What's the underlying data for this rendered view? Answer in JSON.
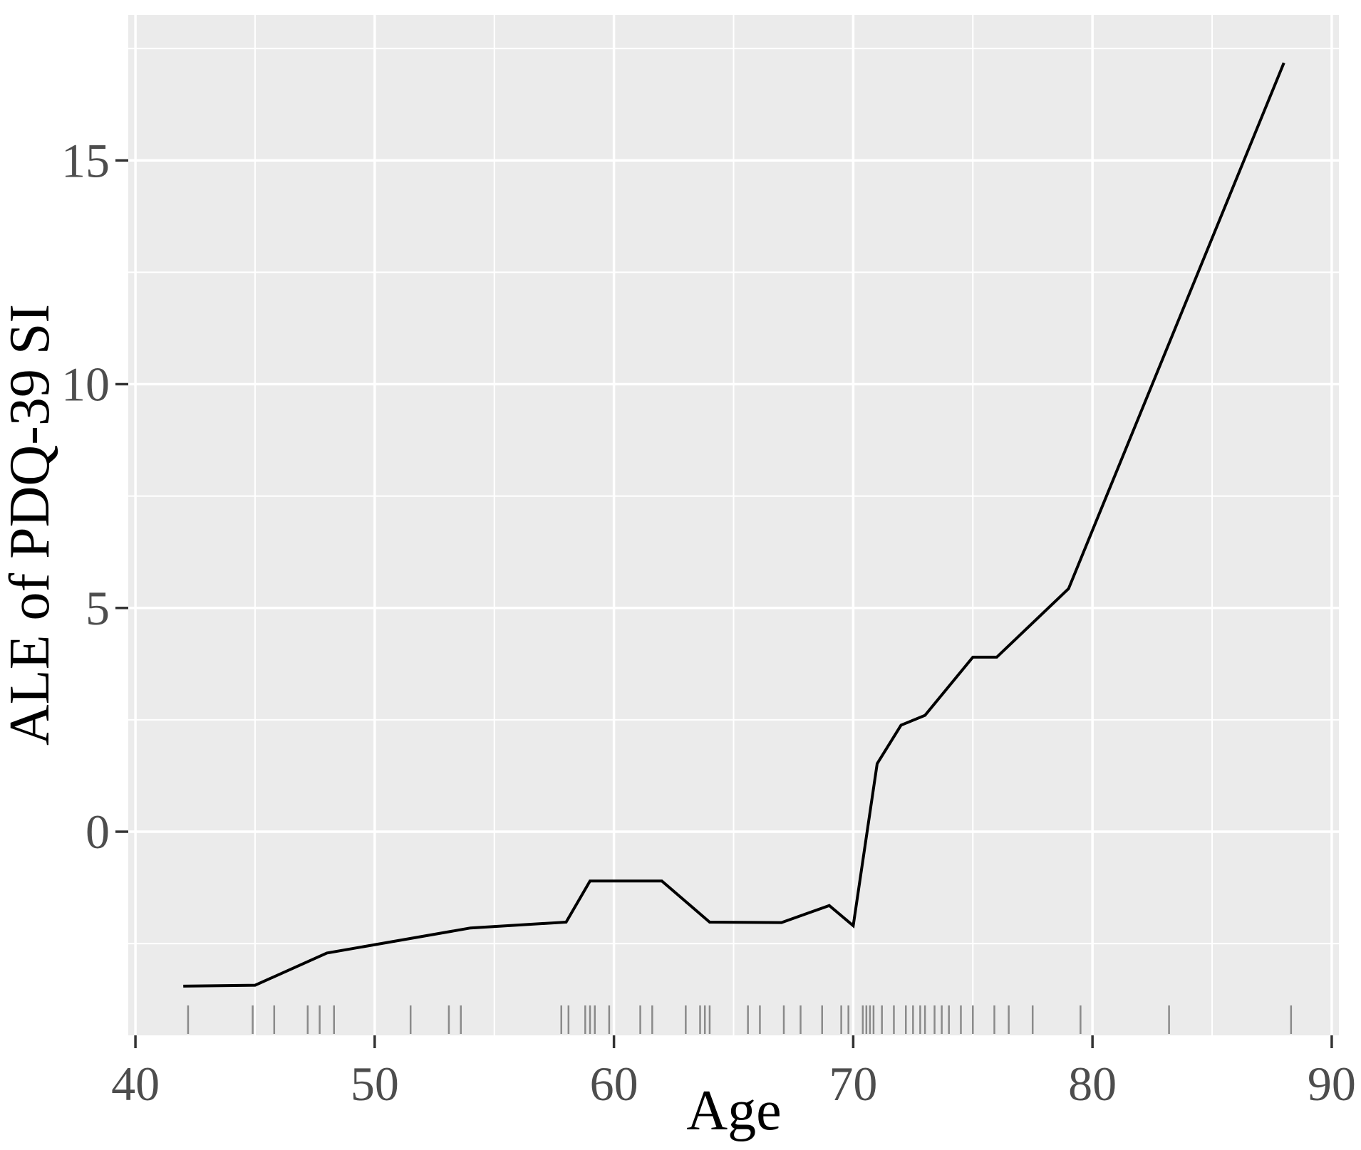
{
  "chart_data": {
    "type": "line",
    "title": "",
    "xlabel": "Age",
    "ylabel": "ALE of PDQ-39 SI",
    "xlim": [
      39.7,
      90.3
    ],
    "ylim": [
      -4.55,
      18.25
    ],
    "x_major_ticks": [
      40,
      50,
      60,
      70,
      80,
      90
    ],
    "x_tick_labels": [
      "40",
      "50",
      "60",
      "70",
      "80",
      "90"
    ],
    "x_minor_ticks": [
      45,
      55,
      65,
      75,
      85
    ],
    "y_major_ticks": [
      0,
      5,
      10,
      15
    ],
    "y_tick_labels": [
      "0",
      "5",
      "10",
      "15"
    ],
    "y_minor_ticks": [
      -2.5,
      2.5,
      7.5,
      12.5,
      17.5
    ],
    "grid": true,
    "legend_position": "none",
    "series": [
      {
        "name": "ALE of PDQ-39 SI vs Age",
        "points": [
          [
            42,
            -3.45
          ],
          [
            45,
            -3.43
          ],
          [
            48,
            -2.71
          ],
          [
            54,
            -2.15
          ],
          [
            58,
            -2.02
          ],
          [
            59,
            -1.1
          ],
          [
            62,
            -1.1
          ],
          [
            64,
            -2.02
          ],
          [
            67,
            -2.03
          ],
          [
            69,
            -1.65
          ],
          [
            70,
            -2.1
          ],
          [
            71,
            1.52
          ],
          [
            72,
            2.38
          ],
          [
            73,
            2.6
          ],
          [
            75,
            3.9
          ],
          [
            76,
            3.9
          ],
          [
            79,
            5.43
          ],
          [
            88,
            17.18
          ]
        ]
      }
    ],
    "rug_x": [
      42.2,
      44.9,
      45.8,
      47.2,
      47.7,
      48.3,
      51.5,
      53.1,
      53.6,
      57.8,
      58.1,
      58.8,
      59.0,
      59.2,
      59.8,
      61.1,
      61.6,
      63.0,
      63.6,
      63.8,
      64.0,
      65.6,
      66.1,
      67.1,
      67.8,
      68.7,
      69.5,
      69.8,
      70.4,
      70.55,
      70.7,
      70.85,
      71.2,
      71.7,
      72.2,
      72.5,
      72.8,
      73.0,
      73.4,
      73.7,
      74.0,
      74.5,
      75.0,
      75.9,
      76.5,
      77.5,
      79.5,
      83.2,
      88.3
    ],
    "colors": {
      "panel_background": "#EBEBEB",
      "grid_major": "#FFFFFF",
      "grid_minor": "#FFFFFF",
      "line": "#000000",
      "rug": "#8A8A8A",
      "tick_mark": "#333333",
      "tick_label": "#4D4D4D",
      "axis_title": "#000000",
      "outer_background": "#FFFFFF"
    }
  }
}
